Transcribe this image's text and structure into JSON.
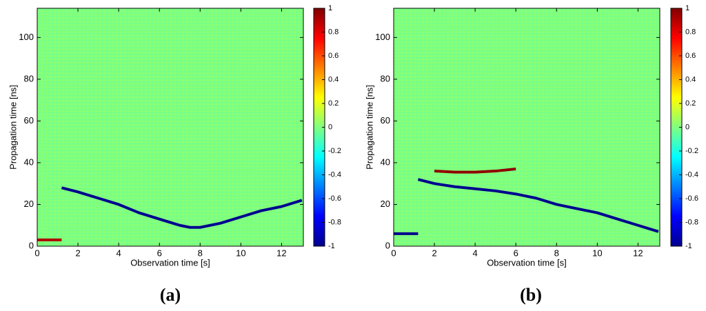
{
  "chart_data": [
    {
      "type": "heatmap",
      "xlabel": "Observation time [s]",
      "ylabel": "Propagation time [ns]",
      "caption": "(a)",
      "xlim": [
        0,
        13.07
      ],
      "ylim": [
        0,
        114
      ],
      "xticks": [
        0,
        2,
        4,
        6,
        8,
        10,
        12
      ],
      "yticks": [
        0,
        20,
        40,
        60,
        80,
        100
      ],
      "clim": [
        -1,
        1
      ],
      "cticks": [
        -1,
        -0.8,
        -0.6,
        -0.4,
        -0.2,
        0,
        0.2,
        0.4,
        0.6,
        0.8,
        1
      ],
      "series": [
        {
          "color": "#00008f",
          "x": [
            1.2,
            2,
            3,
            4,
            5,
            6,
            7,
            7.5,
            8,
            9,
            10,
            11,
            12,
            13
          ],
          "values": [
            28,
            26,
            23,
            20,
            16,
            13,
            10,
            9,
            9,
            11,
            14,
            17,
            19,
            22
          ]
        },
        {
          "color": "#b00000",
          "x": [
            0,
            1.2
          ],
          "values": [
            3,
            3
          ]
        }
      ]
    },
    {
      "type": "heatmap",
      "xlabel": "Observation time [s]",
      "ylabel": "Propagation time [ns]",
      "caption": "(b)",
      "xlim": [
        0,
        13.07
      ],
      "ylim": [
        0,
        114
      ],
      "xticks": [
        0,
        2,
        4,
        6,
        8,
        10,
        12
      ],
      "yticks": [
        0,
        20,
        40,
        60,
        80,
        100
      ],
      "clim": [
        -1,
        1
      ],
      "cticks": [
        -1,
        -0.8,
        -0.6,
        -0.4,
        -0.2,
        0,
        0.2,
        0.4,
        0.6,
        0.8,
        1
      ],
      "series": [
        {
          "color": "#00008f",
          "x": [
            1.2,
            2,
            3,
            4,
            5,
            6,
            7,
            8,
            9,
            10,
            11,
            12,
            13
          ],
          "values": [
            32,
            30,
            28.5,
            27.5,
            26.5,
            25,
            23,
            20,
            18,
            16,
            13,
            10,
            7
          ]
        },
        {
          "color": "#8f0000",
          "x": [
            2,
            3,
            4,
            5,
            6
          ],
          "values": [
            36,
            35.5,
            35.5,
            36,
            37
          ]
        },
        {
          "color": "#00008f",
          "x": [
            0,
            1.2
          ],
          "values": [
            6,
            6
          ]
        }
      ]
    }
  ]
}
